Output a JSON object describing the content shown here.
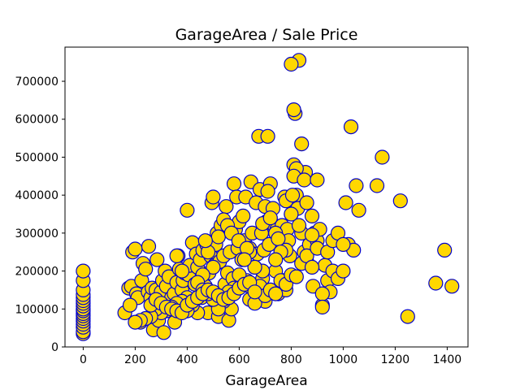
{
  "chart_data": {
    "type": "scatter",
    "title": "GarageArea / Sale Price",
    "xlabel": "GarageArea",
    "ylabel": "",
    "xlim": [
      -70,
      1480
    ],
    "ylim": [
      0,
      790000
    ],
    "xticks": [
      0,
      200,
      400,
      600,
      800,
      1000,
      1200,
      1400
    ],
    "yticks": [
      0,
      100000,
      200000,
      300000,
      400000,
      500000,
      600000,
      700000
    ],
    "grid": false,
    "marker_fill": "#FFD700",
    "marker_edge": "#0000CD",
    "series": [
      {
        "name": "Sale Price",
        "x": [
          0,
          0,
          0,
          0,
          0,
          0,
          0,
          0,
          0,
          0,
          0,
          0,
          0,
          0,
          0,
          0,
          0,
          0,
          160,
          175,
          185,
          190,
          200,
          205,
          210,
          220,
          225,
          230,
          240,
          250,
          252,
          260,
          265,
          270,
          275,
          280,
          284,
          290,
          300,
          305,
          310,
          315,
          320,
          330,
          336,
          340,
          350,
          352,
          360,
          365,
          370,
          380,
          384,
          390,
          400,
          405,
          410,
          416,
          420,
          430,
          435,
          440,
          450,
          455,
          460,
          470,
          475,
          480,
          484,
          490,
          495,
          500,
          505,
          510,
          515,
          520,
          525,
          530,
          540,
          545,
          550,
          555,
          560,
          565,
          570,
          576,
          580,
          586,
          590,
          595,
          600,
          605,
          610,
          615,
          620,
          625,
          630,
          640,
          645,
          650,
          660,
          665,
          670,
          675,
          680,
          686,
          690,
          695,
          700,
          705,
          710,
          715,
          720,
          730,
          735,
          740,
          745,
          750,
          760,
          765,
          770,
          775,
          780,
          785,
          790,
          795,
          800,
          810,
          815,
          820,
          825,
          830,
          840,
          850,
          855,
          860,
          870,
          880,
          884,
          890,
          900,
          910,
          920,
          930,
          940,
          950,
          960,
          980,
          1000,
          1010,
          1020,
          1030,
          1040,
          1050,
          1060,
          1150,
          1130,
          1220,
          1248,
          1356,
          1390,
          1418,
          800,
          810,
          820,
          840,
          830,
          780,
          800,
          810,
          850,
          805,
          690,
          710,
          740,
          860,
          640,
          520,
          540,
          555,
          570,
          598,
          630,
          480,
          470,
          500,
          460,
          380,
          360,
          440,
          400,
          700,
          720,
          750,
          880,
          900,
          920,
          780,
          760,
          740,
          690,
          660,
          640,
          620,
          600,
          580,
          560,
          540,
          520,
          500,
          480,
          460,
          440,
          420,
          400,
          380,
          360,
          340,
          320,
          300,
          280,
          260,
          240,
          220,
          200,
          180,
          640,
          660,
          680,
          700,
          720,
          740,
          760,
          780,
          800,
          820,
          840,
          860,
          880,
          900,
          920,
          940,
          960,
          980,
          1000,
          260,
          280,
          300,
          320,
          340,
          360,
          380,
          400,
          420,
          440,
          460,
          480,
          500,
          520,
          540,
          560,
          580,
          600,
          620,
          640,
          660
        ],
        "y": [
          35000,
          40000,
          52000,
          60000,
          68000,
          75000,
          82000,
          88000,
          95000,
          100000,
          108000,
          115000,
          122000,
          130000,
          138000,
          150000,
          175000,
          200000,
          90000,
          155000,
          160000,
          250000,
          258000,
          140000,
          130000,
          65000,
          175000,
          220000,
          205000,
          145000,
          265000,
          130000,
          155000,
          45000,
          120000,
          150000,
          230000,
          70000,
          145000,
          175000,
          38000,
          200000,
          160000,
          185000,
          115000,
          130000,
          140000,
          65000,
          170000,
          240000,
          205000,
          150000,
          175000,
          195000,
          360000,
          190000,
          215000,
          120000,
          275000,
          165000,
          245000,
          210000,
          230000,
          130000,
          255000,
          160000,
          270000,
          90000,
          195000,
          240000,
          380000,
          395000,
          215000,
          270000,
          300000,
          80000,
          225000,
          320000,
          240000,
          165000,
          370000,
          195000,
          70000,
          250000,
          100000,
          180000,
          430000,
          310000,
          395000,
          260000,
          330000,
          160000,
          230000,
          345000,
          280000,
          395000,
          175000,
          260000,
          435000,
          300000,
          210000,
          380000,
          245000,
          555000,
          415000,
          300000,
          180000,
          255000,
          370000,
          330000,
          555000,
          270000,
          430000,
          365000,
          320000,
          200000,
          310000,
          140000,
          290000,
          320000,
          175000,
          395000,
          385000,
          310000,
          280000,
          240000,
          350000,
          480000,
          615000,
          400000,
          365000,
          755000,
          535000,
          250000,
          460000,
          225000,
          270000,
          345000,
          160000,
          300000,
          280000,
          310000,
          110000,
          215000,
          175000,
          145000,
          200000,
          180000,
          200000,
          380000,
          270000,
          580000,
          255000,
          425000,
          360000,
          500000,
          425000,
          385000,
          80000,
          168000,
          255000,
          160000,
          745000,
          625000,
          470000,
          300000,
          320000,
          255000,
          350000,
          450000,
          440000,
          400000,
          325000,
          410000,
          300000,
          380000,
          250000,
          290000,
          335000,
          320000,
          300000,
          280000,
          260000,
          250000,
          280000,
          210000,
          190000,
          200000,
          240000,
          170000,
          130000,
          120000,
          340000,
          285000,
          295000,
          440000,
          140000,
          150000,
          250000,
          230000,
          200000,
          210000,
          160000,
          230000,
          190000,
          155000,
          145000,
          120000,
          100000,
          125000,
          140000,
          150000,
          90000,
          110000,
          95000,
          120000,
          115000,
          105000,
          95000,
          90000,
          100000,
          80000,
          75000,
          70000,
          65000,
          110000,
          125000,
          115000,
          160000,
          135000,
          150000,
          140000,
          175000,
          165000,
          190000,
          185000,
          220000,
          240000,
          210000,
          260000,
          105000,
          250000,
          280000,
          300000,
          270000,
          110000,
          125000,
          115000,
          105000,
          100000,
          95000,
          90000,
          110000,
          120000,
          130000,
          140000,
          150000,
          145000,
          135000,
          125000,
          130000,
          140000,
          155000,
          165000,
          170000,
          145000
        ]
      }
    ]
  }
}
